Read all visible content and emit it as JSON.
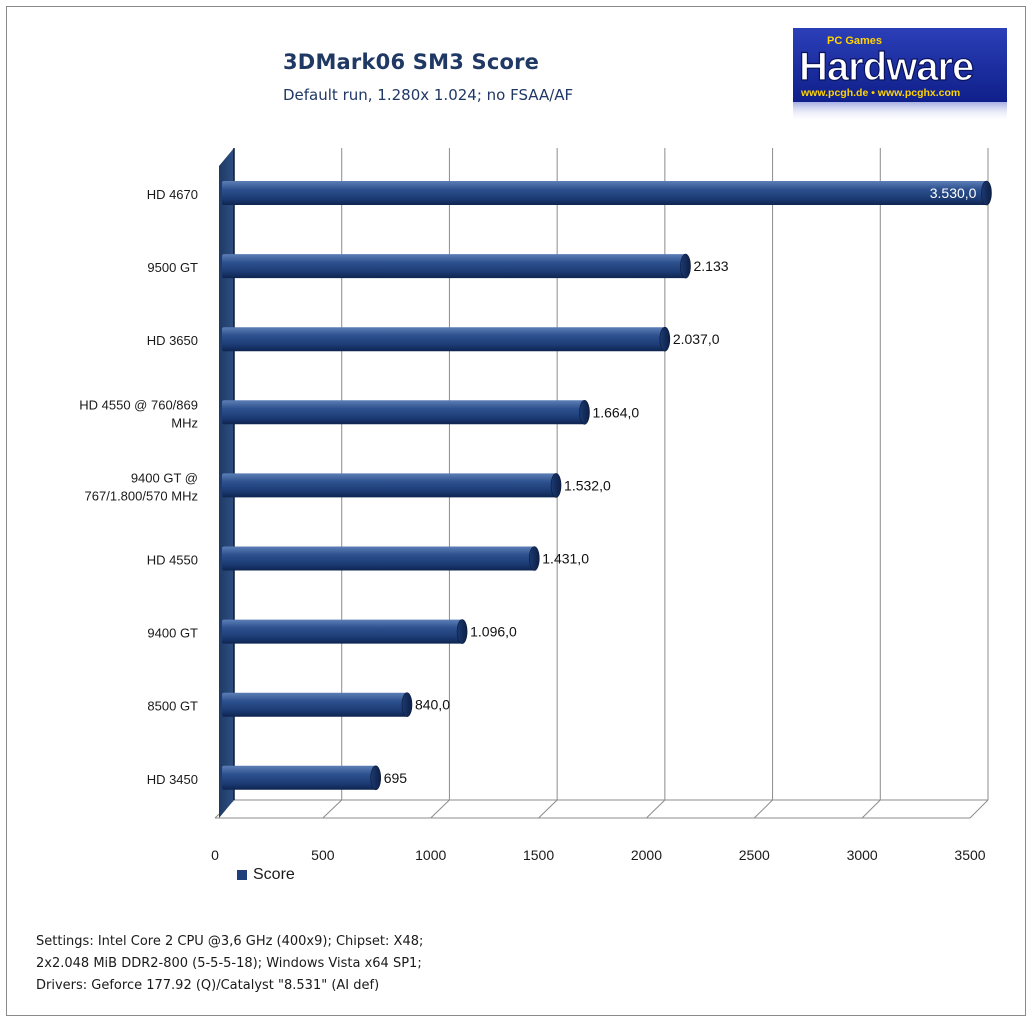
{
  "logo": {
    "top_text": "PC Games",
    "main_text": "Hardware",
    "url_text": "www.pcgh.de • www.pcghx.com"
  },
  "chart_data": {
    "type": "bar",
    "orientation": "horizontal",
    "title": "3DMark06 SM3 Score",
    "subtitle": "Default run, 1.280x 1.024; no FSAA/AF",
    "categories": [
      "HD 4670",
      "9500 GT",
      "HD 3650",
      "HD 4550 @ 760/869 MHz",
      "9400 GT @ 767/1.800/570 MHz",
      "HD 4550",
      "9400 GT",
      "8500 GT",
      "HD 3450"
    ],
    "category_label_lines": [
      [
        "HD 4670"
      ],
      [
        "9500 GT"
      ],
      [
        "HD 3650"
      ],
      [
        "HD 4550 @ 760/869",
        "MHz"
      ],
      [
        "9400 GT @",
        "767/1.800/570 MHz"
      ],
      [
        "HD 4550"
      ],
      [
        "9400 GT"
      ],
      [
        "8500 GT"
      ],
      [
        "HD 3450"
      ]
    ],
    "series": [
      {
        "name": "Score",
        "color": "#1f3f7a",
        "values": [
          3530.0,
          2133,
          2037.0,
          1664.0,
          1532.0,
          1431.0,
          1096.0,
          840.0,
          695
        ],
        "data_labels": [
          "3.530,0",
          "2.133",
          "2.037,0",
          "1.664,0",
          "1.532,0",
          "1.431,0",
          "1.096,0",
          "840,0",
          "695"
        ]
      }
    ],
    "xlim": [
      0,
      3500
    ],
    "xticks": [
      0,
      500,
      1000,
      1500,
      2000,
      2500,
      3000,
      3500
    ],
    "grid": true,
    "legend": "bottom-left"
  },
  "notes": [
    "Settings: Intel Core 2 CPU @3,6 GHz (400x9); Chipset: X48;",
    "2x2.048 MiB DDR2-800 (5-5-5-18);  Windows Vista  x64 SP1;",
    "Drivers: Geforce 177.92 (Q)/Catalyst  \"8.531\" (AI def)"
  ]
}
